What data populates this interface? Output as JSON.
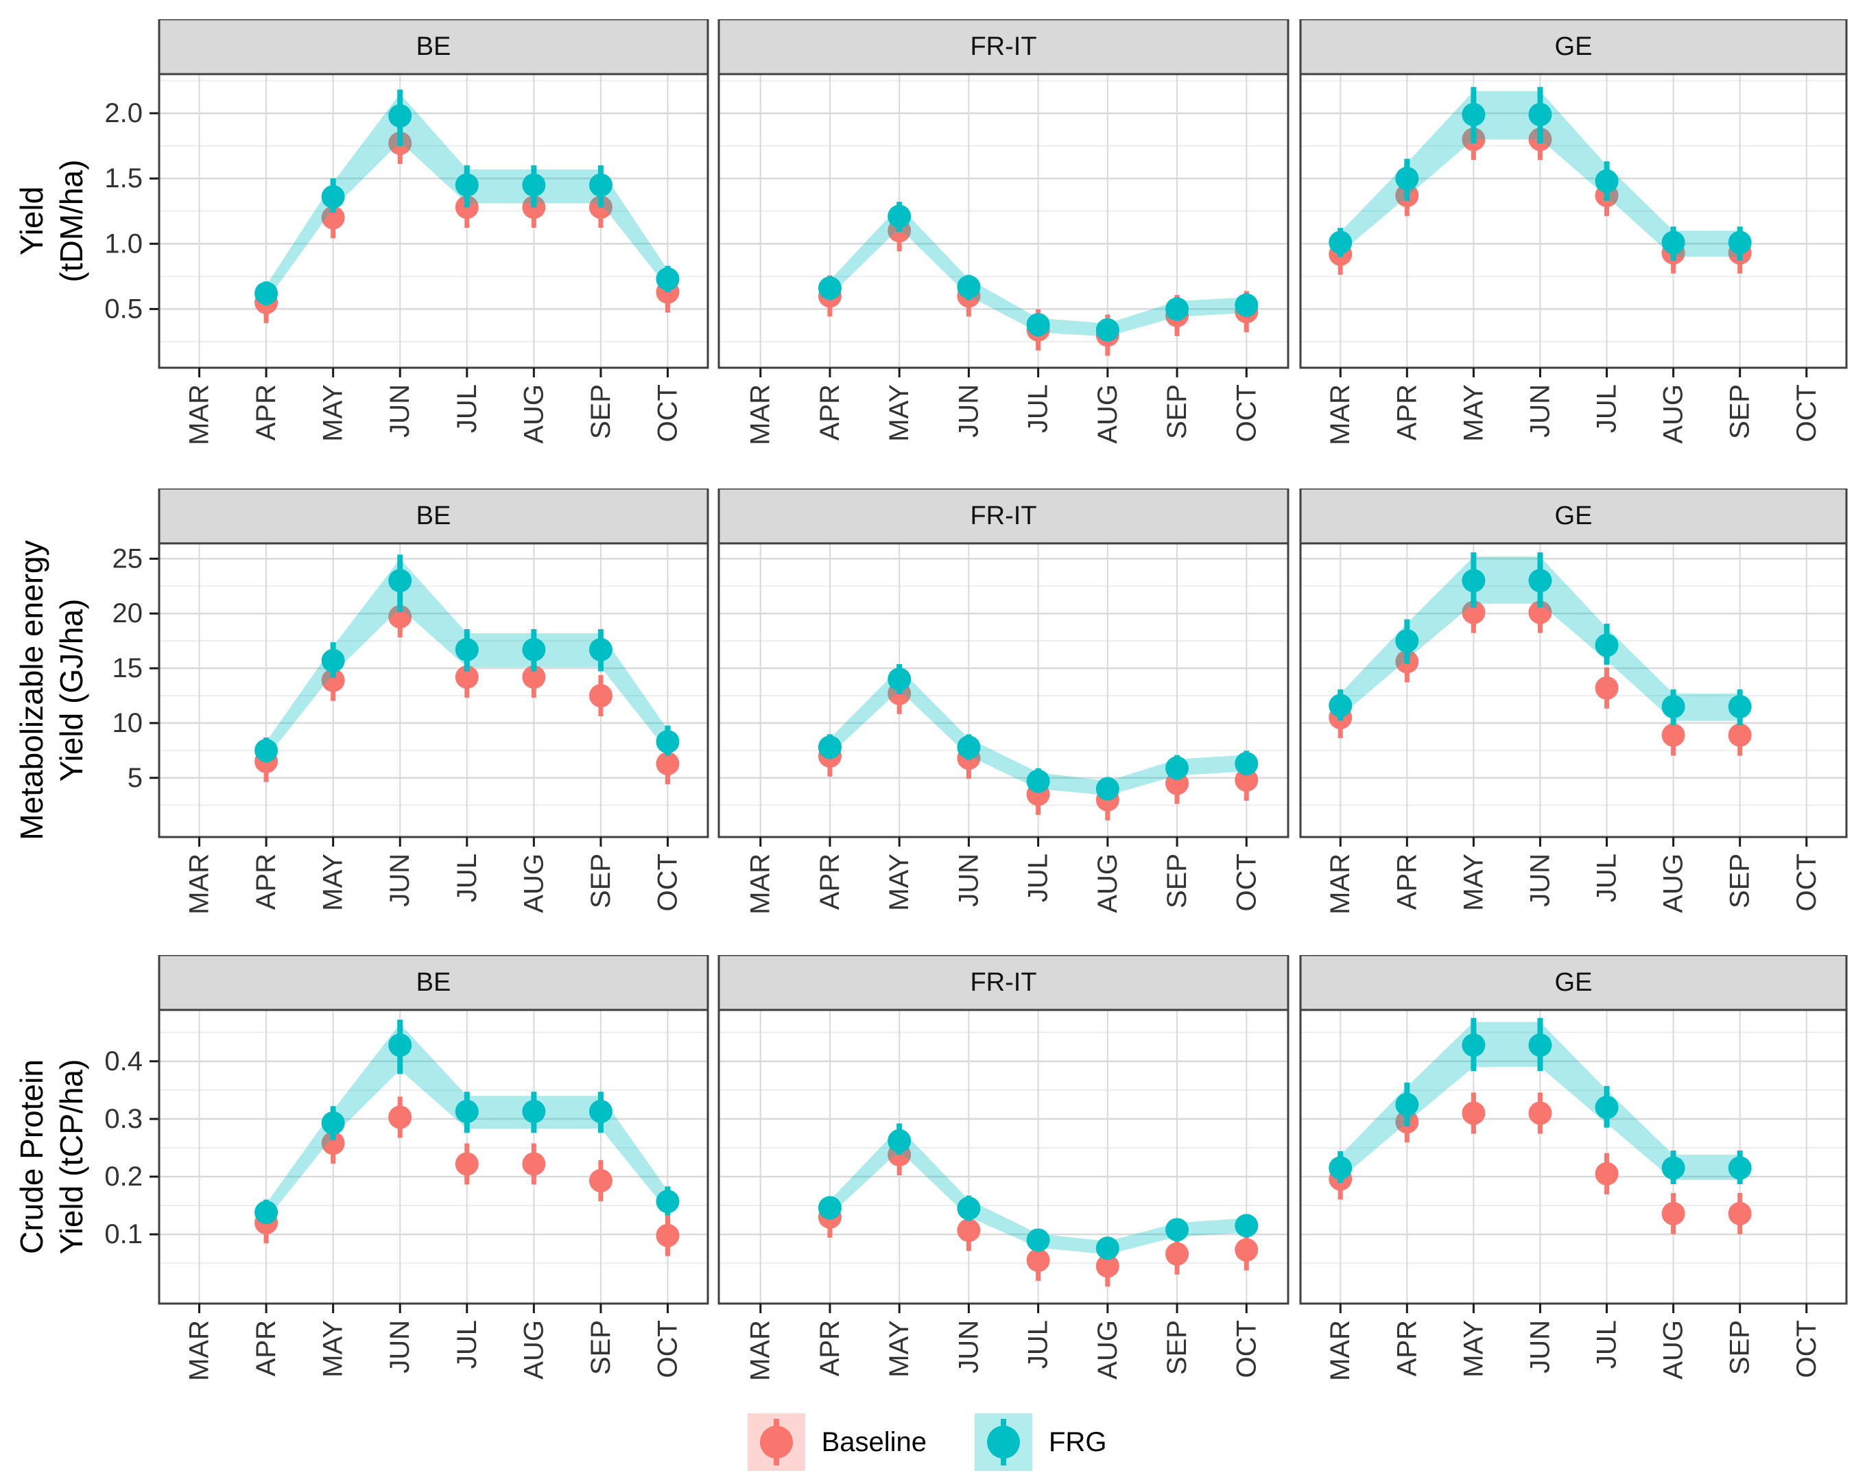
{
  "months": [
    "MAR",
    "APR",
    "MAY",
    "JUN",
    "JUL",
    "AUG",
    "SEP",
    "OCT"
  ],
  "colors": {
    "baseline": "#F8766D",
    "frg": "#00BFC4",
    "ribbon_fill": "rgba(0,191,196,0.32)",
    "baseline_key_bg": "rgba(248,118,109,0.30)",
    "frg_key_bg": "rgba(0,191,196,0.30)",
    "grid_major": "#D9D9D9",
    "grid_minor": "#EDEDED",
    "strip_fill": "#D9D9D9",
    "panel_border": "#404040",
    "axis_text": "#333333",
    "title_text": "#000000"
  },
  "legend": {
    "items": [
      {
        "label": "Baseline",
        "color": "#F8766D",
        "key_bg": "rgba(248,118,109,0.30)"
      },
      {
        "label": "FRG",
        "color": "#00BFC4",
        "key_bg": "rgba(0,191,196,0.30)"
      }
    ]
  },
  "chart_data": [
    {
      "type": "line",
      "ylabel_lines": [
        "Yield",
        "(tDM/ha)"
      ],
      "yticks": [
        0.5,
        1.0,
        1.5,
        2.0
      ],
      "ytick_labels": [
        "0.5",
        "1.0",
        "1.5",
        "2.0"
      ],
      "ylim": [
        0.05,
        2.3
      ],
      "x_categories": [
        "MAR",
        "APR",
        "MAY",
        "JUN",
        "JUL",
        "AUG",
        "SEP",
        "OCT"
      ],
      "legend_position": "bottom",
      "grid": true,
      "facets": [
        {
          "label": "BE",
          "months": [
            "APR",
            "MAY",
            "JUN",
            "JUL",
            "AUG",
            "SEP",
            "OCT"
          ],
          "baseline": [
            0.55,
            1.2,
            1.77,
            1.28,
            1.28,
            1.28,
            0.63
          ],
          "frg": [
            0.62,
            1.36,
            1.98,
            1.45,
            1.45,
            1.45,
            0.73
          ],
          "ribbon_low": [
            0.56,
            1.27,
            1.78,
            1.31,
            1.31,
            1.31,
            0.66
          ],
          "ribbon_high": [
            0.68,
            1.47,
            2.15,
            1.57,
            1.57,
            1.57,
            0.8
          ]
        },
        {
          "label": "FR-IT",
          "months": [
            "APR",
            "MAY",
            "JUN",
            "JUL",
            "AUG",
            "SEP",
            "OCT"
          ],
          "baseline": [
            0.6,
            1.1,
            0.6,
            0.34,
            0.3,
            0.45,
            0.48
          ],
          "frg": [
            0.66,
            1.21,
            0.67,
            0.38,
            0.34,
            0.5,
            0.53
          ],
          "ribbon_low": [
            0.6,
            1.12,
            0.6,
            0.32,
            0.29,
            0.44,
            0.47
          ],
          "ribbon_high": [
            0.72,
            1.29,
            0.73,
            0.43,
            0.39,
            0.56,
            0.59
          ]
        },
        {
          "label": "GE",
          "months": [
            "MAR",
            "APR",
            "MAY",
            "JUN",
            "JUL",
            "AUG",
            "SEP"
          ],
          "baseline": [
            0.92,
            1.37,
            1.8,
            1.8,
            1.37,
            0.93,
            0.93
          ],
          "frg": [
            1.01,
            1.5,
            1.99,
            1.99,
            1.48,
            1.01,
            1.01
          ],
          "ribbon_low": [
            0.93,
            1.36,
            1.8,
            1.8,
            1.36,
            0.9,
            0.9
          ],
          "ribbon_high": [
            1.09,
            1.62,
            2.17,
            2.17,
            1.6,
            1.1,
            1.1
          ]
        }
      ]
    },
    {
      "type": "line",
      "ylabel_lines": [
        "Metabolizable energy",
        "Yield (GJ/ha)"
      ],
      "yticks": [
        5,
        10,
        15,
        20,
        25
      ],
      "ytick_labels": [
        "5",
        "10",
        "15",
        "20",
        "25"
      ],
      "ylim": [
        -0.4,
        26.4
      ],
      "x_categories": [
        "MAR",
        "APR",
        "MAY",
        "JUN",
        "JUL",
        "AUG",
        "SEP",
        "OCT"
      ],
      "legend_position": "bottom",
      "grid": true,
      "facets": [
        {
          "label": "BE",
          "months": [
            "APR",
            "MAY",
            "JUN",
            "JUL",
            "AUG",
            "SEP",
            "OCT"
          ],
          "baseline": [
            6.5,
            13.9,
            19.7,
            14.2,
            14.2,
            12.5,
            6.3
          ],
          "frg": [
            7.5,
            15.7,
            23.0,
            16.7,
            16.7,
            16.7,
            8.3
          ],
          "ribbon_low": [
            6.8,
            14.5,
            20.5,
            15.1,
            15.1,
            15.1,
            7.4
          ],
          "ribbon_high": [
            8.3,
            17.0,
            25.0,
            18.2,
            18.2,
            18.2,
            9.4
          ]
        },
        {
          "label": "FR-IT",
          "months": [
            "APR",
            "MAY",
            "JUN",
            "JUL",
            "AUG",
            "SEP",
            "OCT"
          ],
          "baseline": [
            7.0,
            12.7,
            6.8,
            3.5,
            3.0,
            4.5,
            4.8
          ],
          "frg": [
            7.8,
            14.0,
            7.8,
            4.7,
            4.0,
            5.9,
            6.3
          ],
          "ribbon_low": [
            7.1,
            13.0,
            7.0,
            4.0,
            3.4,
            5.2,
            5.6
          ],
          "ribbon_high": [
            8.6,
            15.0,
            8.6,
            5.5,
            4.7,
            6.7,
            7.1
          ]
        },
        {
          "label": "GE",
          "months": [
            "MAR",
            "APR",
            "MAY",
            "JUN",
            "JUL",
            "AUG",
            "SEP"
          ],
          "baseline": [
            10.5,
            15.6,
            20.1,
            20.1,
            13.2,
            8.9,
            8.9
          ],
          "frg": [
            11.6,
            17.5,
            23.0,
            23.0,
            17.1,
            11.5,
            11.5
          ],
          "ribbon_low": [
            10.6,
            15.8,
            20.9,
            20.9,
            15.7,
            10.2,
            10.2
          ],
          "ribbon_high": [
            12.7,
            19.1,
            25.2,
            25.2,
            18.7,
            12.7,
            12.7
          ]
        }
      ]
    },
    {
      "type": "line",
      "ylabel_lines": [
        "Crude Protein",
        "Yield (tCP/ha)"
      ],
      "yticks": [
        0.1,
        0.2,
        0.3,
        0.4
      ],
      "ytick_labels": [
        "0.1",
        "0.2",
        "0.3",
        "0.4"
      ],
      "ylim": [
        -0.02,
        0.489
      ],
      "x_categories": [
        "MAR",
        "APR",
        "MAY",
        "JUN",
        "JUL",
        "AUG",
        "SEP",
        "OCT"
      ],
      "legend_position": "bottom",
      "grid": true,
      "facets": [
        {
          "label": "BE",
          "months": [
            "APR",
            "MAY",
            "JUN",
            "JUL",
            "AUG",
            "SEP",
            "OCT"
          ],
          "baseline": [
            0.12,
            0.258,
            0.303,
            0.222,
            0.222,
            0.193,
            0.098
          ],
          "frg": [
            0.138,
            0.293,
            0.428,
            0.313,
            0.313,
            0.313,
            0.157
          ],
          "ribbon_low": [
            0.125,
            0.27,
            0.385,
            0.283,
            0.283,
            0.283,
            0.14
          ],
          "ribbon_high": [
            0.153,
            0.315,
            0.465,
            0.34,
            0.34,
            0.34,
            0.176
          ]
        },
        {
          "label": "FR-IT",
          "months": [
            "APR",
            "MAY",
            "JUN",
            "JUL",
            "AUG",
            "SEP",
            "OCT"
          ],
          "baseline": [
            0.13,
            0.238,
            0.107,
            0.055,
            0.045,
            0.066,
            0.073
          ],
          "frg": [
            0.146,
            0.262,
            0.145,
            0.09,
            0.076,
            0.108,
            0.115
          ],
          "ribbon_low": [
            0.133,
            0.245,
            0.13,
            0.077,
            0.065,
            0.096,
            0.103
          ],
          "ribbon_high": [
            0.159,
            0.285,
            0.16,
            0.101,
            0.088,
            0.12,
            0.128
          ]
        },
        {
          "label": "GE",
          "months": [
            "MAR",
            "APR",
            "MAY",
            "JUN",
            "JUL",
            "AUG",
            "SEP"
          ],
          "baseline": [
            0.196,
            0.295,
            0.31,
            0.31,
            0.205,
            0.136,
            0.136
          ],
          "frg": [
            0.215,
            0.325,
            0.428,
            0.428,
            0.32,
            0.215,
            0.215
          ],
          "ribbon_low": [
            0.196,
            0.294,
            0.39,
            0.39,
            0.292,
            0.194,
            0.194
          ],
          "ribbon_high": [
            0.237,
            0.356,
            0.468,
            0.468,
            0.35,
            0.238,
            0.238
          ]
        }
      ]
    }
  ]
}
